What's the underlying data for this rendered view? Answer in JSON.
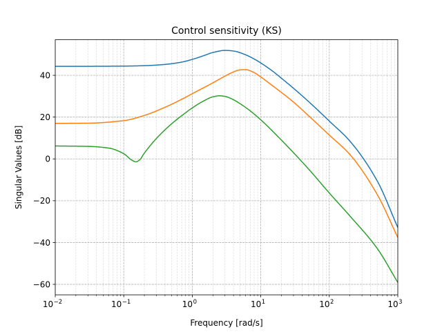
{
  "chart_data": {
    "type": "line",
    "title": "Control sensitivity (KS)",
    "xlabel": "Frequency [rad/s]",
    "ylabel": "Singular Values [dB]",
    "xscale": "log",
    "xlim": [
      0.01,
      1000
    ],
    "ylim": [
      -65,
      57
    ],
    "grid": "major and minor, dashed",
    "x_ticks": [
      {
        "base": "10",
        "exp": "−2",
        "value": 0.01
      },
      {
        "base": "10",
        "exp": "−1",
        "value": 0.1
      },
      {
        "base": "10",
        "exp": "0",
        "value": 1
      },
      {
        "base": "10",
        "exp": "1",
        "value": 10
      },
      {
        "base": "10",
        "exp": "2",
        "value": 100
      },
      {
        "base": "10",
        "exp": "3",
        "value": 1000
      }
    ],
    "y_ticks": [
      {
        "label": "40",
        "value": 40
      },
      {
        "label": "20",
        "value": 20
      },
      {
        "label": "0",
        "value": 0
      },
      {
        "label": "−20",
        "value": -20
      },
      {
        "label": "−40",
        "value": -40
      },
      {
        "label": "−60",
        "value": -60
      }
    ],
    "series": [
      {
        "color": "#1f77b4",
        "x": [
          0.01,
          0.03,
          0.1,
          0.2,
          0.4,
          0.7,
          1,
          1.5,
          2,
          3,
          4,
          6,
          8,
          10,
          15,
          20,
          30,
          50,
          100,
          200,
          500,
          1000
        ],
        "y": [
          44.3,
          44.3,
          44.4,
          44.6,
          45.2,
          46.3,
          47.6,
          49.5,
          50.9,
          51.9,
          51.6,
          49.8,
          47.8,
          45.9,
          41.9,
          38.6,
          33.8,
          27.4,
          18.1,
          8.5,
          -10.5,
          -32.8
        ]
      },
      {
        "color": "#ff7f0e",
        "x": [
          0.01,
          0.03,
          0.1,
          0.2,
          0.4,
          0.7,
          1,
          2,
          3,
          4,
          5,
          6,
          8,
          10,
          15,
          20,
          30,
          50,
          100,
          200,
          500,
          1000
        ],
        "y": [
          17,
          17.1,
          18.3,
          20.8,
          24.7,
          28.5,
          31.2,
          36.4,
          39.6,
          41.6,
          42.6,
          42.7,
          41.3,
          39.2,
          34.9,
          31.8,
          27.2,
          20.6,
          11.4,
          2.1,
          -17,
          -37.6
        ]
      },
      {
        "color": "#2ca02c",
        "x": [
          0.01,
          0.03,
          0.06,
          0.1,
          0.13,
          0.15,
          0.17,
          0.2,
          0.3,
          0.5,
          0.8,
          1,
          1.5,
          2,
          2.5,
          3,
          4,
          5,
          7,
          10,
          20,
          50,
          100,
          200,
          500,
          1000
        ],
        "y": [
          6.2,
          6,
          5.2,
          2.5,
          -0.5,
          -1.4,
          -0.5,
          2.8,
          9.8,
          16.8,
          22.1,
          24.4,
          27.9,
          29.7,
          30.2,
          29.9,
          28.3,
          26.4,
          23,
          18.7,
          9,
          -4.9,
          -16.3,
          -27.3,
          -42.8,
          -59.1
        ]
      }
    ]
  }
}
